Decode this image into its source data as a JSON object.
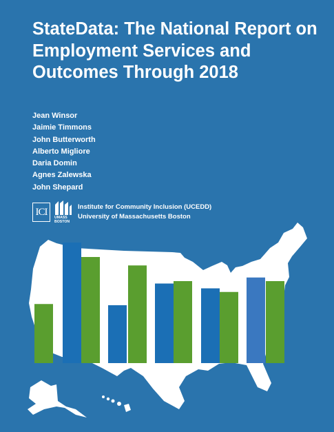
{
  "report": {
    "title": "StateData: The National Report on Employment Services and Outcomes Through 2018",
    "authors": [
      "Jean Winsor",
      "Jaimie Timmons",
      "John Butterworth",
      "Alberto Migliore",
      "Daria Domin",
      "Agnes Zalewska",
      "John Shepard"
    ]
  },
  "institution": {
    "logo_ici": "ICI",
    "logo_umass": "UMASS BOSTON",
    "line1": "Institute for Community Inclusion (UCEDD)",
    "line2": "University of Massachusetts Boston"
  },
  "cover_graphic": {
    "icons": [
      "usa-map-icon"
    ],
    "bar_levels": [
      {
        "color": "#5a9e2f",
        "height_fraction": 0.49
      },
      {
        "color": "#1b6fb5",
        "height_fraction": 1.0
      },
      {
        "color": "#5a9e2f",
        "height_fraction": 0.88
      },
      {
        "color": "#1b6fb5",
        "height_fraction": 0.48
      },
      {
        "color": "#5a9e2f",
        "height_fraction": 0.81
      },
      {
        "color": "#1b6fb5",
        "height_fraction": 0.66
      },
      {
        "color": "#5a9e2f",
        "height_fraction": 0.68
      },
      {
        "color": "#1b6fb5",
        "height_fraction": 0.62
      },
      {
        "color": "#5a9e2f",
        "height_fraction": 0.59
      },
      {
        "color": "#3a78c0",
        "height_fraction": 0.71
      },
      {
        "color": "#5a9e2f",
        "height_fraction": 0.68
      }
    ]
  },
  "colors": {
    "background": "#2a74ad",
    "text": "#ffffff",
    "map": "#ffffff"
  }
}
